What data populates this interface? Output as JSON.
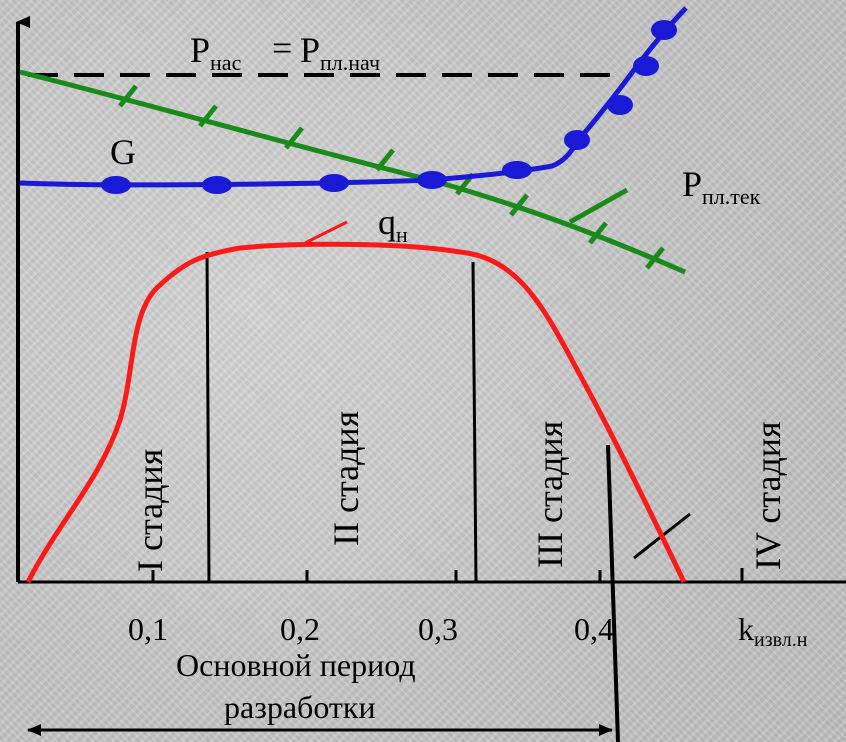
{
  "labels": {
    "p_sat_main": "P",
    "p_sat_sub": "нас",
    "equals": "=",
    "p_init_main": "P",
    "p_init_sub": "пл.нач",
    "p_cur_main": "P",
    "p_cur_sub": "пл.тек",
    "g": "G",
    "q_main": "q",
    "q_sub": "н",
    "k_main": "k",
    "k_sub": "извл.н",
    "period_line1": "Основной период",
    "period_line2": "разработки"
  },
  "stages": [
    "I стадия",
    "II стадия",
    "III стадия",
    "IV стадия"
  ],
  "ticks": [
    "0,1",
    "0,2",
    "0,3",
    "0,4"
  ],
  "colors": {
    "red_curve": "#ff1a1a",
    "blue_curve": "#1a1ad6",
    "green_curve": "#1a8a1a",
    "axis": "#000000",
    "dashed": "#000000"
  }
}
